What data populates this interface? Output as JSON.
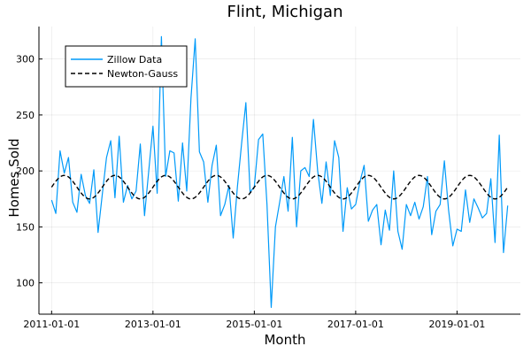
{
  "chart_data": {
    "type": "line",
    "title": "Flint, Michigan",
    "xlabel": "Month",
    "ylabel": "Homes Sold",
    "x_start": "2011-01-01",
    "x_step": "month",
    "xlim": [
      "2010-10-01",
      "2020-04-01"
    ],
    "ylim": [
      72,
      329
    ],
    "x_ticks": [
      "2011-01-01",
      "2013-01-01",
      "2015-01-01",
      "2017-01-01",
      "2019-01-01"
    ],
    "y_ticks": [
      100,
      150,
      200,
      250,
      300
    ],
    "grid": true,
    "legend_position": "top-left",
    "series": [
      {
        "name": "Zillow Data",
        "color": "#009af9",
        "style": "solid",
        "values": [
          174,
          162,
          218,
          198,
          212,
          172,
          163,
          197,
          178,
          171,
          201,
          145,
          179,
          212,
          227,
          176,
          231,
          172,
          187,
          175,
          182,
          224,
          160,
          200,
          240,
          180,
          320,
          195,
          218,
          216,
          173,
          225,
          182,
          265,
          318,
          217,
          208,
          172,
          205,
          223,
          160,
          170,
          187,
          140,
          186,
          225,
          261,
          181,
          186,
          228,
          233,
          170,
          78,
          150,
          172,
          195,
          164,
          230,
          150,
          200,
          203,
          195,
          246,
          200,
          171,
          208,
          178,
          227,
          212,
          146,
          185,
          166,
          170,
          190,
          205,
          155,
          165,
          170,
          134,
          165,
          147,
          200,
          146,
          130,
          170,
          160,
          172,
          157,
          168,
          195,
          143,
          164,
          170,
          209,
          165,
          133,
          148,
          146,
          183,
          154,
          175,
          167,
          158,
          162,
          193,
          136,
          232,
          127,
          169
        ]
      },
      {
        "name": "Newton-Gauss",
        "color": "#000000",
        "style": "dashed",
        "model": {
          "mean": 185.5,
          "amplitude": 10.5,
          "period_months": 12,
          "phase_months": 0
        }
      }
    ]
  }
}
